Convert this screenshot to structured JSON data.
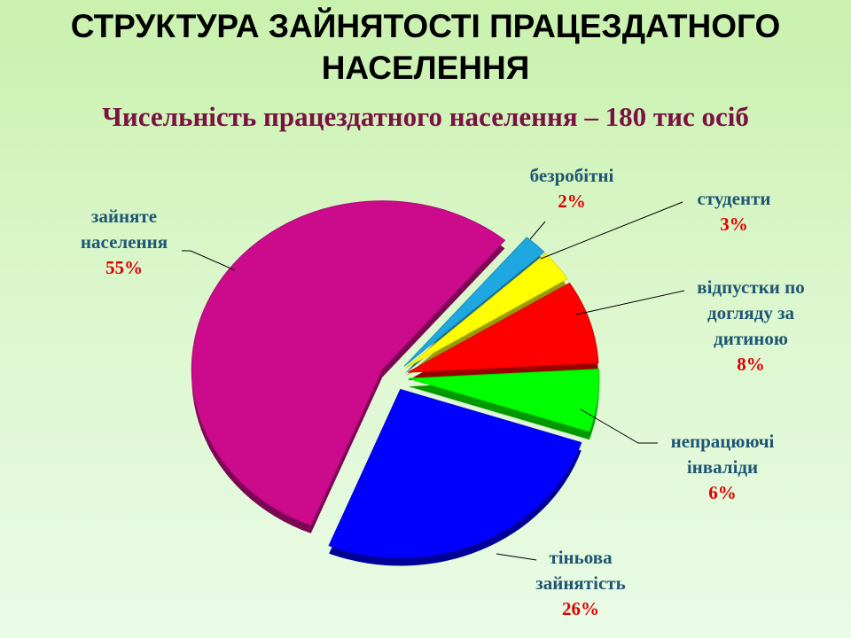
{
  "chart_data": {
    "type": "pie",
    "title": "СТРУКТУРА ЗАЙНЯТОСТІ ПРАЦЕЗДАТНОГО НАСЕЛЕННЯ",
    "subtitle": "Чисельність працездатного населення – 180 тис осіб",
    "categories": [
      "безробітні",
      "студенти",
      "відпустки по догляду за дитиною",
      "непрацюючі інваліди",
      "тіньова зайнятість",
      "зайняте населення"
    ],
    "values": [
      2,
      3,
      8,
      6,
      26,
      55
    ],
    "value_labels": [
      "2%",
      "3%",
      "8%",
      "6%",
      "26%",
      "55%"
    ],
    "colors": [
      "#1ea7e1",
      "#ffff00",
      "#ff0000",
      "#00ff00",
      "#0000ff",
      "#cc0a8c"
    ]
  }
}
